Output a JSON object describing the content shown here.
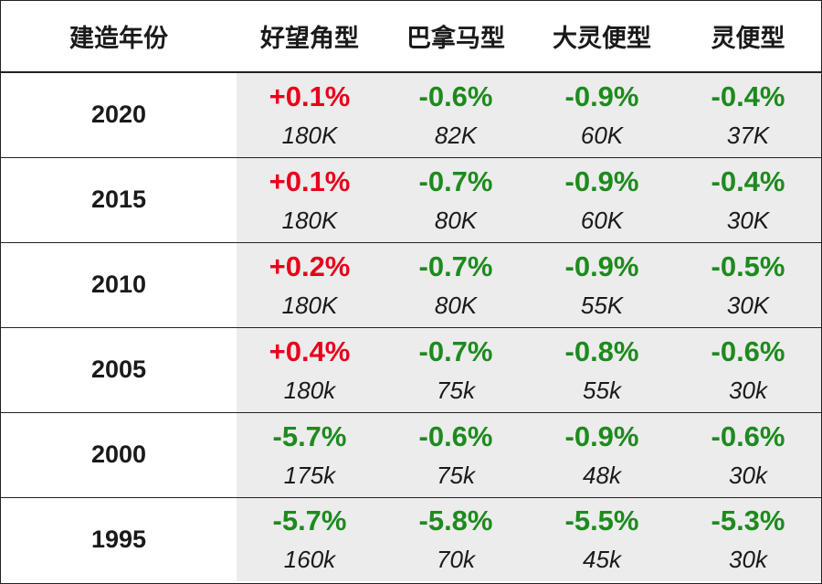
{
  "chart_data": {
    "type": "table",
    "columns": [
      "建造年份",
      "好望角型",
      "巴拿马型",
      "大灵便型",
      "灵便型"
    ],
    "rows": [
      {
        "year": "2020",
        "cells": [
          {
            "pct": "+0.1%",
            "vol": "180K"
          },
          {
            "pct": "-0.6%",
            "vol": "82K"
          },
          {
            "pct": "-0.9%",
            "vol": "60K"
          },
          {
            "pct": "-0.4%",
            "vol": "37K"
          }
        ]
      },
      {
        "year": "2015",
        "cells": [
          {
            "pct": "+0.1%",
            "vol": "180K"
          },
          {
            "pct": "-0.7%",
            "vol": "80K"
          },
          {
            "pct": "-0.9%",
            "vol": "60K"
          },
          {
            "pct": "-0.4%",
            "vol": "30K"
          }
        ]
      },
      {
        "year": "2010",
        "cells": [
          {
            "pct": "+0.2%",
            "vol": "180K"
          },
          {
            "pct": "-0.7%",
            "vol": "80K"
          },
          {
            "pct": "-0.9%",
            "vol": "55K"
          },
          {
            "pct": "-0.5%",
            "vol": "30K"
          }
        ]
      },
      {
        "year": "2005",
        "cells": [
          {
            "pct": "+0.4%",
            "vol": "180k"
          },
          {
            "pct": "-0.7%",
            "vol": "75k"
          },
          {
            "pct": "-0.8%",
            "vol": "55k"
          },
          {
            "pct": "-0.6%",
            "vol": "30k"
          }
        ]
      },
      {
        "year": "2000",
        "cells": [
          {
            "pct": "-5.7%",
            "vol": "175k"
          },
          {
            "pct": "-0.6%",
            "vol": "75k"
          },
          {
            "pct": "-0.9%",
            "vol": "48k"
          },
          {
            "pct": "-0.6%",
            "vol": "30k"
          }
        ]
      },
      {
        "year": "1995",
        "cells": [
          {
            "pct": "-5.7%",
            "vol": "160k"
          },
          {
            "pct": "-5.8%",
            "vol": "70k"
          },
          {
            "pct": "-5.5%",
            "vol": "45k"
          },
          {
            "pct": "-5.3%",
            "vol": "30k"
          }
        ]
      }
    ]
  },
  "colors": {
    "positive": "#e8001c",
    "negative": "#1e8a1e",
    "cell_background": "#ececec",
    "border": "#222222"
  }
}
